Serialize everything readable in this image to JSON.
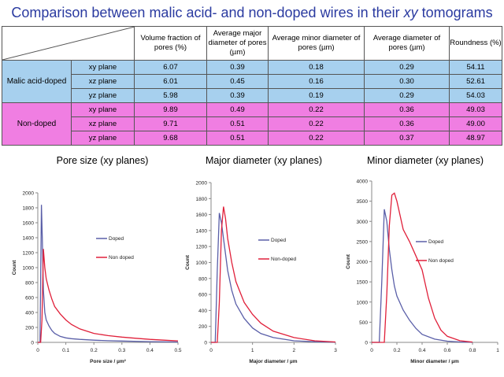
{
  "title": {
    "before": "Comparison between malic acid- and non-doped wires in their ",
    "italic": "xy",
    "after": " tomograms"
  },
  "table": {
    "headers": [
      "Volume fraction of pores (%)",
      "Average major diameter of pores (µm)",
      "Average minor diameter of pores (µm)",
      "Average diameter of pores (µm)",
      "Roundness (%)"
    ],
    "groups": [
      {
        "name": "Malic acid-doped",
        "rows": [
          {
            "plane": "xy plane",
            "values": [
              "6.07",
              "0.39",
              "0.18",
              "0.29",
              "54.11"
            ]
          },
          {
            "plane": "xz plane",
            "values": [
              "6.01",
              "0.45",
              "0.16",
              "0.30",
              "52.61"
            ]
          },
          {
            "plane": "yz plane",
            "values": [
              "5.98",
              "0.39",
              "0.19",
              "0.29",
              "54.03"
            ]
          }
        ]
      },
      {
        "name": "Non-doped",
        "rows": [
          {
            "plane": "xy plane",
            "values": [
              "9.89",
              "0.49",
              "0.22",
              "0.36",
              "49.03"
            ]
          },
          {
            "plane": "xz plane",
            "values": [
              "9.71",
              "0.51",
              "0.22",
              "0.36",
              "49.00"
            ]
          },
          {
            "plane": "yz plane",
            "values": [
              "9.68",
              "0.51",
              "0.22",
              "0.37",
              "48.97"
            ]
          }
        ]
      }
    ]
  },
  "chart_data": [
    {
      "type": "line",
      "title": "Pore size (xy planes)",
      "xlabel": "Pore size / µm²",
      "ylabel": "Count",
      "xlim": [
        0,
        0.5
      ],
      "ylim": [
        0,
        2000
      ],
      "xticks": [
        "0",
        "0.1",
        "0.2",
        "0.3",
        "0.4",
        "0.5"
      ],
      "yticks": [
        "0",
        "200",
        "400",
        "600",
        "800",
        "1000",
        "1200",
        "1400",
        "1600",
        "1800",
        "2000"
      ],
      "legend_position": "center-right",
      "series": [
        {
          "name": "Doped",
          "color": "#5a5fa8",
          "x": [
            0,
            0.008,
            0.013,
            0.016,
            0.02,
            0.025,
            0.03,
            0.04,
            0.05,
            0.06,
            0.08,
            0.1,
            0.12,
            0.15,
            0.2,
            0.25,
            0.3,
            0.4,
            0.5
          ],
          "y": [
            0,
            0,
            1840,
            1400,
            700,
            400,
            300,
            220,
            160,
            120,
            80,
            60,
            50,
            40,
            30,
            22,
            18,
            10,
            5
          ]
        },
        {
          "name": "Non doped",
          "color": "#e0203a",
          "x": [
            0,
            0.01,
            0.015,
            0.02,
            0.025,
            0.03,
            0.04,
            0.05,
            0.06,
            0.08,
            0.1,
            0.12,
            0.15,
            0.2,
            0.25,
            0.3,
            0.35,
            0.4,
            0.45,
            0.5
          ],
          "y": [
            0,
            0,
            300,
            1250,
            1000,
            850,
            700,
            580,
            480,
            380,
            300,
            240,
            180,
            120,
            90,
            70,
            55,
            40,
            30,
            20
          ]
        }
      ]
    },
    {
      "type": "line",
      "title": "Major diameter (xy planes)",
      "xlabel": "Major diameter / µm",
      "ylabel": "Count",
      "xlim": [
        0,
        3
      ],
      "ylim": [
        0,
        2000
      ],
      "xticks": [
        "0",
        "1",
        "2",
        "3"
      ],
      "yticks": [
        "0",
        "200",
        "400",
        "600",
        "800",
        "1000",
        "1200",
        "1400",
        "1600",
        "1800",
        "2000"
      ],
      "legend_position": "center-right",
      "series": [
        {
          "name": "Doped",
          "color": "#5a5fa8",
          "x": [
            0,
            0.1,
            0.15,
            0.2,
            0.25,
            0.3,
            0.4,
            0.5,
            0.6,
            0.8,
            1.0,
            1.2,
            1.5,
            2.0,
            2.5,
            3.0
          ],
          "y": [
            0,
            0,
            900,
            1620,
            1500,
            1300,
            900,
            650,
            480,
            300,
            180,
            110,
            60,
            20,
            8,
            3
          ]
        },
        {
          "name": "Non-doped",
          "color": "#e0203a",
          "x": [
            0,
            0.15,
            0.2,
            0.25,
            0.3,
            0.35,
            0.4,
            0.5,
            0.6,
            0.8,
            1.0,
            1.2,
            1.5,
            2.0,
            2.5,
            3.0
          ],
          "y": [
            0,
            0,
            500,
            1400,
            1700,
            1550,
            1300,
            1000,
            760,
            500,
            350,
            240,
            140,
            60,
            20,
            5
          ]
        }
      ]
    },
    {
      "type": "line",
      "title": "Minor diameter (xy planes)",
      "xlabel": "Minor diameter / µm",
      "ylabel": "Count",
      "xlim": [
        0,
        1
      ],
      "ylim": [
        0,
        4000
      ],
      "xticks": [
        "0",
        "0.2",
        "0.4",
        "0.6",
        "0.8",
        "1"
      ],
      "yticks": [
        "0",
        "500",
        "1000",
        "1500",
        "2000",
        "2500",
        "3000",
        "3500",
        "4000"
      ],
      "legend_position": "center-right",
      "series": [
        {
          "name": "Doped",
          "color": "#5a5fa8",
          "x": [
            0,
            0.06,
            0.08,
            0.1,
            0.12,
            0.14,
            0.16,
            0.18,
            0.2,
            0.25,
            0.3,
            0.35,
            0.4,
            0.5,
            0.6,
            0.7,
            0.8
          ],
          "y": [
            0,
            0,
            1500,
            3300,
            3000,
            2300,
            1800,
            1400,
            1150,
            800,
            550,
            350,
            200,
            80,
            30,
            10,
            3
          ]
        },
        {
          "name": "Non doped",
          "color": "#e0203a",
          "x": [
            0,
            0.1,
            0.12,
            0.14,
            0.16,
            0.18,
            0.2,
            0.25,
            0.3,
            0.35,
            0.4,
            0.45,
            0.5,
            0.55,
            0.6,
            0.7,
            0.8
          ],
          "y": [
            0,
            0,
            1200,
            2900,
            3650,
            3700,
            3500,
            2800,
            2500,
            2150,
            1800,
            1100,
            600,
            300,
            150,
            40,
            8
          ]
        }
      ]
    }
  ]
}
